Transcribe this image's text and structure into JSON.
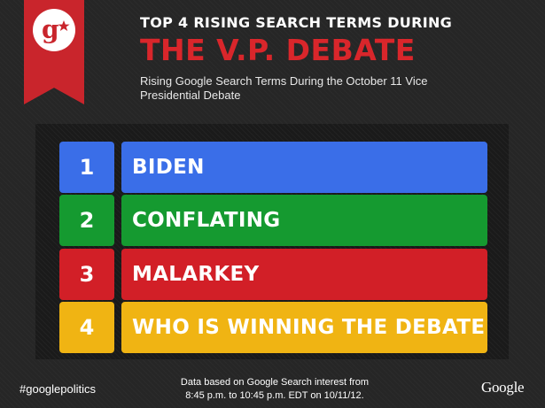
{
  "header": {
    "title_line1": "TOP 4 RISING SEARCH TERMS DURING",
    "title_line2": "THE V.P. DEBATE",
    "subtitle": "Rising Google Search Terms During the October 11 Vice Presidential Debate"
  },
  "badge": {
    "icon": "google-plus-logo-icon",
    "ribbon_color": "#c9252c"
  },
  "ranking": {
    "items": [
      {
        "rank": "1",
        "term": "BIDEN",
        "color": "#3a6ee8"
      },
      {
        "rank": "2",
        "term": "CONFLATING",
        "color": "#159a30"
      },
      {
        "rank": "3",
        "term": "MALARKEY",
        "color": "#d21f27"
      },
      {
        "rank": "4",
        "term": "WHO IS WINNING THE DEBATE",
        "color": "#f0b413"
      }
    ]
  },
  "footer": {
    "hashtag": "#googlepolitics",
    "note_line1": "Data based on Google Search interest from",
    "note_line2": "8:45 p.m. to 10:45 p.m. EDT on 10/11/12.",
    "brand": "Google"
  }
}
